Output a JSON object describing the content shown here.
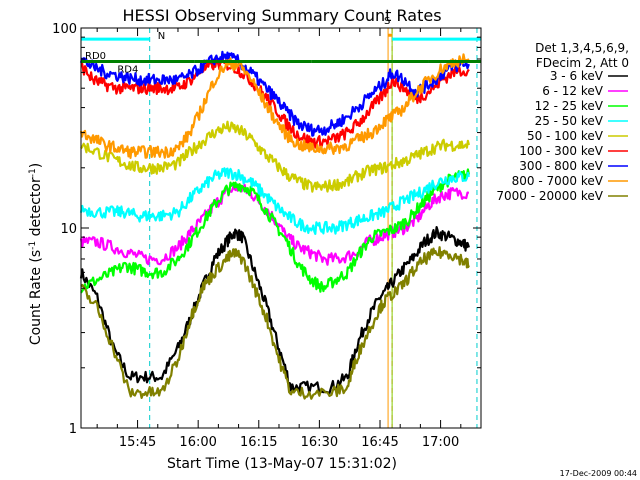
{
  "chart_data": {
    "type": "line",
    "title": "HESSI Observing Summary Count Rates",
    "xlabel": "Start Time (13-May-07 15:31:02)",
    "ylabel": "Count Rate (s⁻¹ detector⁻¹)",
    "ylabel_parts": {
      "main": "Count Rate (s",
      "exp1": "-1",
      "mid": " detector",
      "exp2": "-1",
      "end": ")"
    },
    "yscale": "log",
    "ylim": [
      1,
      100
    ],
    "xlim_min": [
      0,
      99
    ],
    "xticks": [
      {
        "label": "15:45",
        "min": 14
      },
      {
        "label": "16:00",
        "min": 29
      },
      {
        "label": "16:15",
        "min": 44
      },
      {
        "label": "16:30",
        "min": 59
      },
      {
        "label": "16:45",
        "min": 74
      },
      {
        "label": "17:00",
        "min": 89
      }
    ],
    "yticks": [
      {
        "label": "1",
        "value": 1
      },
      {
        "label": "10",
        "value": 10
      },
      {
        "label": "100",
        "value": 100
      }
    ],
    "legend_header": [
      "Det 1,3,4,5,6,9,",
      "FDecim 2, Att 0"
    ],
    "legend_placement": "right",
    "footer_date": "17-Dec-2009 00:44",
    "series": [
      {
        "name": "3 - 6 keV",
        "color": "#000000",
        "points": [
          [
            0,
            6
          ],
          [
            4,
            4.5
          ],
          [
            8,
            2.5
          ],
          [
            12,
            1.8
          ],
          [
            16,
            1.8
          ],
          [
            20,
            1.8
          ],
          [
            24,
            2.5
          ],
          [
            27,
            3.5
          ],
          [
            30,
            5
          ],
          [
            33,
            7
          ],
          [
            36,
            8.5
          ],
          [
            38,
            9.5
          ],
          [
            40,
            9
          ],
          [
            43,
            6
          ],
          [
            46,
            4
          ],
          [
            49,
            2.5
          ],
          [
            52,
            1.6
          ],
          [
            56,
            1.6
          ],
          [
            62,
            1.6
          ],
          [
            66,
            1.8
          ],
          [
            68,
            2.5
          ],
          [
            71,
            3.5
          ],
          [
            74,
            4.5
          ],
          [
            76,
            5
          ],
          [
            79,
            6
          ],
          [
            82,
            7
          ],
          [
            85,
            8.5
          ],
          [
            88,
            9.5
          ],
          [
            91,
            9
          ],
          [
            94,
            8.5
          ],
          [
            96,
            8
          ]
        ]
      },
      {
        "name": "6 - 12 keV",
        "color": "#ff00ff",
        "points": [
          [
            0,
            8.5
          ],
          [
            4,
            8.5
          ],
          [
            8,
            8
          ],
          [
            12,
            7.5
          ],
          [
            16,
            7
          ],
          [
            20,
            7
          ],
          [
            24,
            8
          ],
          [
            27,
            9.5
          ],
          [
            30,
            11
          ],
          [
            33,
            13
          ],
          [
            36,
            15
          ],
          [
            39,
            16
          ],
          [
            42,
            15
          ],
          [
            45,
            13
          ],
          [
            48,
            11
          ],
          [
            51,
            9
          ],
          [
            54,
            8
          ],
          [
            57,
            7.5
          ],
          [
            60,
            7
          ],
          [
            64,
            7
          ],
          [
            68,
            7.5
          ],
          [
            71,
            8.5
          ],
          [
            74,
            9
          ],
          [
            77,
            9.5
          ],
          [
            80,
            10
          ],
          [
            83,
            11
          ],
          [
            86,
            13
          ],
          [
            89,
            14.5
          ],
          [
            92,
            15
          ],
          [
            96,
            15
          ]
        ]
      },
      {
        "name": "12 - 25 keV",
        "color": "#00ff00",
        "points": [
          [
            0,
            5
          ],
          [
            4,
            5.5
          ],
          [
            8,
            6
          ],
          [
            11,
            6.5
          ],
          [
            14,
            6.2
          ],
          [
            17,
            6
          ],
          [
            20,
            6
          ],
          [
            24,
            7
          ],
          [
            27,
            8.5
          ],
          [
            30,
            10.5
          ],
          [
            33,
            13
          ],
          [
            36,
            15.5
          ],
          [
            39,
            16.5
          ],
          [
            42,
            15.5
          ],
          [
            45,
            13
          ],
          [
            48,
            10.5
          ],
          [
            51,
            8.5
          ],
          [
            54,
            6.5
          ],
          [
            57,
            5.5
          ],
          [
            60,
            5
          ],
          [
            63,
            5.5
          ],
          [
            66,
            6
          ],
          [
            69,
            7.5
          ],
          [
            72,
            9
          ],
          [
            75,
            9.5
          ],
          [
            78,
            10
          ],
          [
            81,
            11
          ],
          [
            84,
            13
          ],
          [
            87,
            15
          ],
          [
            90,
            17
          ],
          [
            93,
            18
          ],
          [
            96,
            18.5
          ]
        ]
      },
      {
        "name": "25 - 50 keV",
        "color": "#00ffff",
        "points": [
          [
            0,
            12.5
          ],
          [
            4,
            12
          ],
          [
            8,
            12
          ],
          [
            11,
            12
          ],
          [
            14,
            11.5
          ],
          [
            17,
            11.5
          ],
          [
            20,
            11.5
          ],
          [
            24,
            12
          ],
          [
            27,
            14
          ],
          [
            30,
            16
          ],
          [
            33,
            18
          ],
          [
            36,
            19
          ],
          [
            39,
            18.5
          ],
          [
            42,
            17
          ],
          [
            45,
            15
          ],
          [
            48,
            13
          ],
          [
            51,
            11.5
          ],
          [
            54,
            10.5
          ],
          [
            57,
            10
          ],
          [
            60,
            10
          ],
          [
            63,
            10
          ],
          [
            66,
            10.5
          ],
          [
            69,
            11
          ],
          [
            72,
            11.5
          ],
          [
            75,
            12
          ],
          [
            78,
            13
          ],
          [
            81,
            14
          ],
          [
            84,
            15
          ],
          [
            87,
            16.5
          ],
          [
            90,
            17.5
          ],
          [
            93,
            18
          ],
          [
            96,
            18
          ]
        ]
      },
      {
        "name": "50 - 100 keV",
        "color": "#cccc00",
        "points": [
          [
            0,
            26
          ],
          [
            4,
            24
          ],
          [
            8,
            22
          ],
          [
            11,
            21
          ],
          [
            14,
            20
          ],
          [
            17,
            20
          ],
          [
            20,
            20
          ],
          [
            24,
            21
          ],
          [
            27,
            24
          ],
          [
            30,
            27
          ],
          [
            33,
            30
          ],
          [
            36,
            32
          ],
          [
            39,
            31
          ],
          [
            42,
            28
          ],
          [
            45,
            24
          ],
          [
            48,
            21
          ],
          [
            51,
            18.5
          ],
          [
            54,
            17
          ],
          [
            57,
            16
          ],
          [
            60,
            16
          ],
          [
            63,
            16.5
          ],
          [
            66,
            17
          ],
          [
            69,
            18.5
          ],
          [
            72,
            19.5
          ],
          [
            75,
            20
          ],
          [
            78,
            21
          ],
          [
            81,
            22
          ],
          [
            84,
            23.5
          ],
          [
            87,
            25
          ],
          [
            90,
            26
          ],
          [
            93,
            26
          ],
          [
            96,
            26
          ]
        ]
      },
      {
        "name": "100 - 300 keV",
        "color": "#ff0000",
        "points": [
          [
            0,
            65
          ],
          [
            3,
            55
          ],
          [
            6,
            52
          ],
          [
            9,
            50
          ],
          [
            12,
            50
          ],
          [
            15,
            50
          ],
          [
            18,
            50
          ],
          [
            21,
            50
          ],
          [
            24,
            50
          ],
          [
            27,
            55
          ],
          [
            30,
            62
          ],
          [
            33,
            66
          ],
          [
            36,
            66
          ],
          [
            39,
            62
          ],
          [
            42,
            55
          ],
          [
            45,
            47
          ],
          [
            48,
            40
          ],
          [
            51,
            33
          ],
          [
            54,
            29
          ],
          [
            57,
            27
          ],
          [
            60,
            27
          ],
          [
            63,
            28
          ],
          [
            66,
            30
          ],
          [
            69,
            34
          ],
          [
            72,
            40
          ],
          [
            75,
            47
          ],
          [
            77,
            55
          ],
          [
            80,
            50
          ],
          [
            83,
            44
          ],
          [
            86,
            48
          ],
          [
            89,
            54
          ],
          [
            92,
            60
          ],
          [
            96,
            62
          ]
        ]
      },
      {
        "name": "300 - 800 keV",
        "color": "#0000ff",
        "points": [
          [
            0,
            70
          ],
          [
            3,
            64
          ],
          [
            6,
            60
          ],
          [
            9,
            58
          ],
          [
            12,
            56
          ],
          [
            15,
            55
          ],
          [
            18,
            55
          ],
          [
            21,
            55
          ],
          [
            24,
            55
          ],
          [
            27,
            58
          ],
          [
            30,
            64
          ],
          [
            33,
            70
          ],
          [
            36,
            72
          ],
          [
            39,
            68
          ],
          [
            42,
            60
          ],
          [
            45,
            52
          ],
          [
            48,
            45
          ],
          [
            51,
            38
          ],
          [
            54,
            33
          ],
          [
            57,
            31
          ],
          [
            60,
            31
          ],
          [
            63,
            33
          ],
          [
            66,
            36
          ],
          [
            69,
            41
          ],
          [
            72,
            47
          ],
          [
            75,
            53
          ],
          [
            77,
            60
          ],
          [
            80,
            55
          ],
          [
            83,
            48
          ],
          [
            86,
            52
          ],
          [
            89,
            58
          ],
          [
            92,
            64
          ],
          [
            96,
            66
          ]
        ]
      },
      {
        "name": "800 - 7000 keV",
        "color": "#ff9900",
        "points": [
          [
            0,
            30
          ],
          [
            3,
            28
          ],
          [
            6,
            26
          ],
          [
            9,
            25
          ],
          [
            12,
            24
          ],
          [
            15,
            24
          ],
          [
            18,
            24
          ],
          [
            21,
            24
          ],
          [
            24,
            25
          ],
          [
            27,
            30
          ],
          [
            30,
            40
          ],
          [
            33,
            55
          ],
          [
            36,
            66
          ],
          [
            39,
            66
          ],
          [
            42,
            56
          ],
          [
            45,
            44
          ],
          [
            48,
            35
          ],
          [
            51,
            29
          ],
          [
            54,
            26
          ],
          [
            57,
            25
          ],
          [
            60,
            25
          ],
          [
            63,
            25
          ],
          [
            66,
            26
          ],
          [
            69,
            28
          ],
          [
            72,
            30
          ],
          [
            75,
            34
          ],
          [
            77,
            36
          ],
          [
            80,
            40
          ],
          [
            83,
            48
          ],
          [
            86,
            55
          ],
          [
            89,
            62
          ],
          [
            92,
            68
          ],
          [
            96,
            70
          ]
        ]
      },
      {
        "name": "7000 - 20000 keV",
        "color": "#808000",
        "points": [
          [
            0,
            5
          ],
          [
            4,
            4
          ],
          [
            8,
            2.5
          ],
          [
            12,
            1.5
          ],
          [
            16,
            1.5
          ],
          [
            20,
            1.5
          ],
          [
            24,
            2.2
          ],
          [
            27,
            3.5
          ],
          [
            30,
            5
          ],
          [
            33,
            6
          ],
          [
            36,
            7
          ],
          [
            38,
            7.5
          ],
          [
            40,
            7
          ],
          [
            43,
            5
          ],
          [
            46,
            3.5
          ],
          [
            49,
            2.2
          ],
          [
            52,
            1.5
          ],
          [
            56,
            1.5
          ],
          [
            62,
            1.5
          ],
          [
            66,
            1.6
          ],
          [
            68,
            2.2
          ],
          [
            71,
            3
          ],
          [
            74,
            4
          ],
          [
            76,
            4.5
          ],
          [
            79,
            5
          ],
          [
            82,
            6
          ],
          [
            85,
            7
          ],
          [
            88,
            7.5
          ],
          [
            91,
            7.5
          ],
          [
            94,
            7
          ],
          [
            96,
            6.5
          ]
        ]
      }
    ],
    "annotations": {
      "labels": [
        {
          "text": "RD0",
          "x_min": 1,
          "y_value": 70,
          "color": "#006600"
        },
        {
          "text": "RD4",
          "x_min": 9,
          "y_value": 60,
          "color": "#006600"
        },
        {
          "text": "N",
          "x_min": 19,
          "y_value": 88,
          "color": "#00cccc"
        },
        {
          "text": "S",
          "x_min": 75,
          "y_value": 105,
          "color": "#ff9900"
        }
      ],
      "night_bars": [
        [
          0,
          17
        ],
        [
          77,
          99
        ]
      ],
      "night_level": 88,
      "rd_bars": [
        [
          0,
          28
        ],
        [
          28,
          57
        ],
        [
          57,
          77
        ],
        [
          77,
          86
        ],
        [
          86,
          99
        ]
      ],
      "rd_level": 68,
      "saa_bar": [
        76,
        77
      ],
      "saa_level": 92,
      "dashed_lines": [
        {
          "x_min": 17,
          "color": "#00cccc"
        },
        {
          "x_min": 77,
          "color": "#ff3300"
        },
        {
          "x_min": 98,
          "color": "#00cccc"
        }
      ],
      "solid_lines": [
        {
          "x_min": 76,
          "color": "#ff9900"
        },
        {
          "x_min": 77,
          "color": "#88cc00"
        }
      ]
    }
  }
}
